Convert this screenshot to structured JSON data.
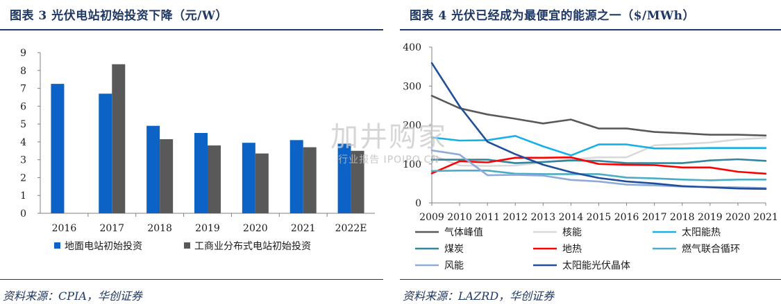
{
  "left": {
    "title": "图表 3   光伏电站初始投资下降（元/W）",
    "source": "资料来源：CPIA，华创证券"
  },
  "right": {
    "title": "图表 4   光伏已经成为最便宜的能源之一（$/MWh）",
    "source": "资料来源：LAZRD，华创证券"
  },
  "watermark": {
    "main": "加井购家",
    "sub": "行业报告 IPOIPO.CN"
  },
  "chart_data": [
    {
      "type": "bar",
      "title": "光伏电站初始投资下降（元/W）",
      "categories": [
        "2016",
        "2017",
        "2018",
        "2019",
        "2020",
        "2021",
        "2022E"
      ],
      "ylim": [
        0,
        9
      ],
      "yticks": [
        0,
        1,
        2,
        3,
        4,
        5,
        6,
        7,
        8,
        9
      ],
      "grid": false,
      "legend_position": "bottom",
      "series": [
        {
          "name": "地面电站初始投资",
          "color": "#0d63c5",
          "values": [
            7.25,
            6.7,
            4.9,
            4.5,
            3.95,
            4.1,
            3.9
          ]
        },
        {
          "name": "工商业分布式电站初始投资",
          "color": "#595959",
          "values": [
            null,
            8.35,
            4.15,
            3.8,
            3.35,
            3.7,
            3.5
          ]
        }
      ]
    },
    {
      "type": "line",
      "title": "光伏已经成为最便宜的能源之一（$/MWh）",
      "x": [
        "2009",
        "2010",
        "2011",
        "2012",
        "2013",
        "2014",
        "2015",
        "2016",
        "2017",
        "2018",
        "2019",
        "2020",
        "2021"
      ],
      "ylim": [
        0,
        400
      ],
      "yticks": [
        0,
        100,
        200,
        300,
        400
      ],
      "grid": false,
      "legend_position": "bottom",
      "series": [
        {
          "name": "气体峰值",
          "color": "#595959",
          "values": [
            275,
            243,
            227,
            216,
            204,
            214,
            191,
            191,
            182,
            179,
            175,
            175,
            173
          ]
        },
        {
          "name": "核能",
          "color": "#d9d9d9",
          "values": [
            123,
            96,
            95,
            96,
            104,
            112,
            117,
            117,
            148,
            151,
            155,
            163,
            167
          ]
        },
        {
          "name": "太阳能热",
          "color": "#14b0e8",
          "values": [
            168,
            160,
            161,
            172,
            145,
            122,
            150,
            150,
            140,
            140,
            141,
            141,
            141
          ]
        },
        {
          "name": "煤炭",
          "color": "#31859c",
          "values": [
            111,
            111,
            111,
            102,
            105,
            109,
            108,
            102,
            102,
            102,
            109,
            112,
            108
          ]
        },
        {
          "name": "地热",
          "color": "#ff0000",
          "values": [
            76,
            107,
            104,
            116,
            116,
            117,
            100,
            98,
            97,
            91,
            91,
            80,
            75
          ]
        },
        {
          "name": "燃气联合循环",
          "color": "#4bacc6",
          "values": [
            82,
            83,
            83,
            75,
            74,
            74,
            74,
            65,
            63,
            60,
            58,
            60,
            60
          ]
        },
        {
          "name": "风能",
          "color": "#8eaadb",
          "values": [
            135,
            124,
            71,
            72,
            70,
            59,
            55,
            47,
            45,
            42,
            41,
            40,
            38
          ]
        },
        {
          "name": "太阳能光伏晶体",
          "color": "#1f4e9c",
          "values": [
            359,
            248,
            157,
            125,
            98,
            79,
            64,
            55,
            50,
            43,
            40,
            37,
            36
          ]
        }
      ]
    }
  ]
}
